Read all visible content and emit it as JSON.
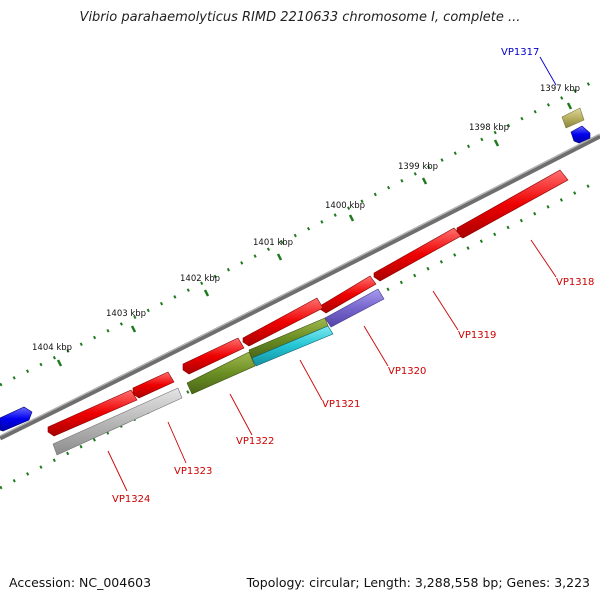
{
  "title": "Vibrio parahaemolyticus RIMD 2210633 chromosome I, complete ...",
  "accession": "Accession: NC_004603",
  "summary": "Topology: circular; Length: 3,288,558 bp; Genes: 3,223",
  "ruler": {
    "unit": "kbp",
    "labels": [
      "1397 kbp",
      "1398 kbp",
      "1399 kbp",
      "1400 kbp",
      "1401 kbp",
      "1402 kbp",
      "1403 kbp",
      "1404 kbp"
    ]
  },
  "colors": {
    "backbone": "#7a7a7a",
    "tick": "#1f7a1f",
    "forward_label": "#0000cc",
    "reverse_label": "#cc0000",
    "forward_gene": "#0000ee",
    "reverse_gene": "#ee0000"
  },
  "genes": [
    {
      "label": "VP1317",
      "strand": "forward",
      "color": "#0000cc"
    },
    {
      "label": "VP1318",
      "strand": "reverse",
      "color": "#cc0000"
    },
    {
      "label": "VP1319",
      "strand": "reverse",
      "color": "#cc0000"
    },
    {
      "label": "VP1320",
      "strand": "reverse",
      "color": "#cc0000"
    },
    {
      "label": "VP1321",
      "strand": "reverse",
      "color": "#cc0000"
    },
    {
      "label": "VP1322",
      "strand": "reverse",
      "color": "#cc0000"
    },
    {
      "label": "VP1323",
      "strand": "reverse",
      "color": "#cc0000"
    },
    {
      "label": "VP1324",
      "strand": "reverse",
      "color": "#cc0000"
    }
  ],
  "feature_colors": {
    "olive_small": "#b8b060",
    "purple": "#7766cc",
    "olive": "#6b8e23",
    "cyan": "#22c4d4",
    "gray": "#b0b0b0"
  }
}
